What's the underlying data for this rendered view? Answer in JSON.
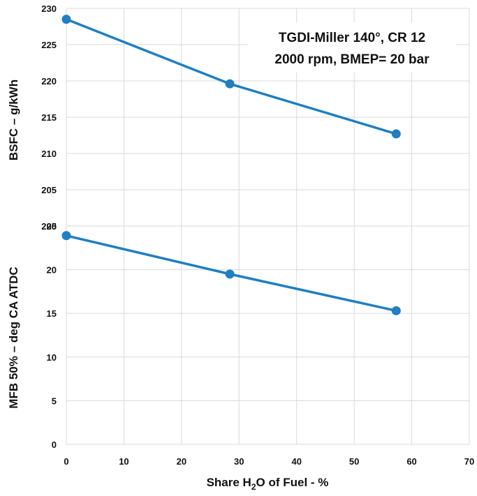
{
  "chart_data": [
    {
      "type": "line",
      "ylabel": "BSFC – g/kWh",
      "ylim": [
        200,
        230
      ],
      "yticks": [
        200,
        205,
        210,
        215,
        220,
        225,
        230
      ],
      "xlim": [
        0,
        70
      ],
      "grid": true,
      "annotation": [
        "TGDI-Miller 140°, CR 12",
        "2000 rpm, BMEP= 20 bar"
      ],
      "color": "#1f7fc0",
      "x": [
        0,
        28.4,
        57.3
      ],
      "values": [
        228.5,
        219.6,
        212.7
      ]
    },
    {
      "type": "line",
      "ylabel": "MFB 50%  – deg CA ATDC",
      "ylim": [
        0,
        25
      ],
      "yticks": [
        0,
        5,
        10,
        15,
        20,
        25
      ],
      "xlim": [
        0,
        70
      ],
      "xticks": [
        0,
        10,
        20,
        30,
        40,
        50,
        60,
        70
      ],
      "grid": true,
      "color": "#1f7fc0",
      "x": [
        0,
        28.4,
        57.3
      ],
      "values": [
        23.9,
        19.5,
        15.3
      ]
    }
  ],
  "xlabel": {
    "before": "Share H",
    "sub": "2",
    "after": "O of Fuel - %"
  }
}
